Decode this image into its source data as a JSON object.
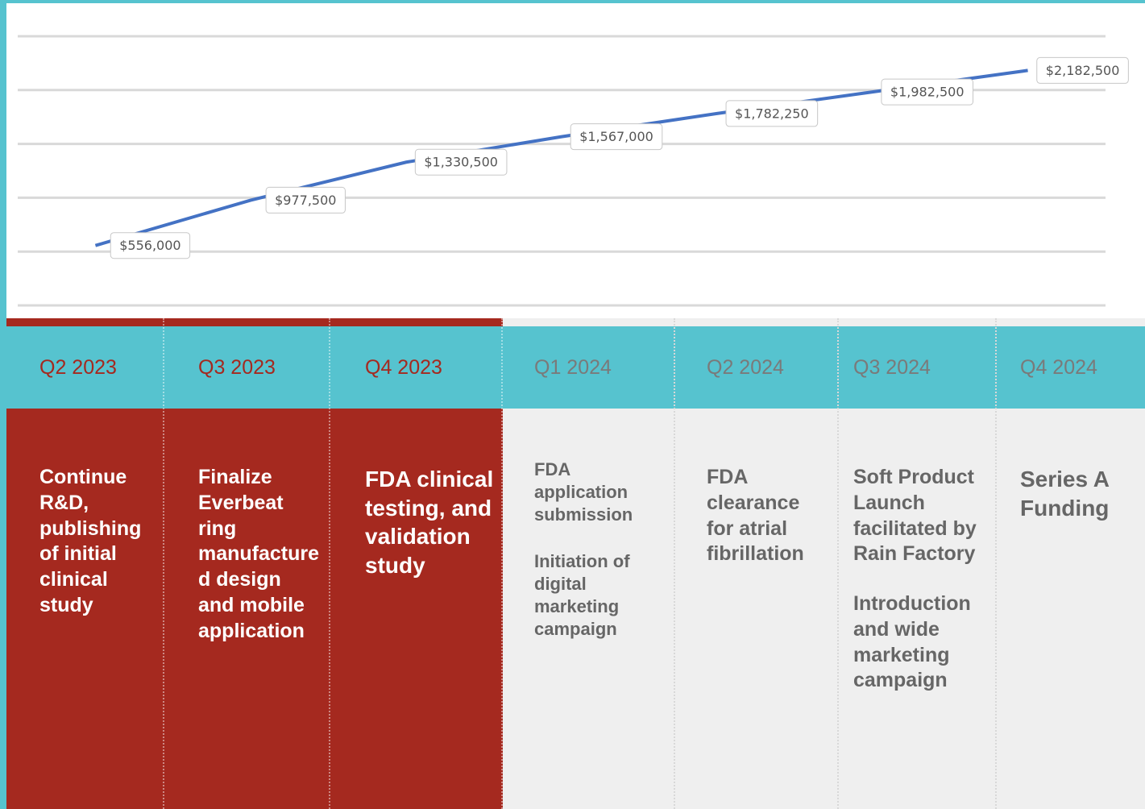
{
  "chart_data": {
    "type": "line",
    "categories": [
      "Q2 2023",
      "Q3 2023",
      "Q4 2023",
      "Q1 2024",
      "Q2 2024",
      "Q3 2024",
      "Q4 2024"
    ],
    "series": [
      {
        "color": "#4472c4",
        "values": [
          556000,
          977500,
          1330500,
          1567000,
          1782250,
          1982500,
          2182500
        ],
        "value_labels": [
          "$556,000",
          "$977,500",
          "$1,330,500",
          "$1,567,000",
          "$1,782,250",
          "$1,982,500",
          "$2,182,500"
        ]
      }
    ],
    "ylim": [
      0,
      2500000
    ],
    "yticks": [
      0,
      500000,
      1000000,
      1500000,
      2000000,
      2500000
    ],
    "grid": true
  },
  "timeline": [
    {
      "done": true,
      "paragraphs": [
        "Continue R&D, publishing of initial clinical study"
      ]
    },
    {
      "done": true,
      "paragraphs": [
        "Finalize Everbeat ring manufactured design and mobile application"
      ]
    },
    {
      "done": true,
      "paragraphs": [
        "FDA clinical testing, and validation study"
      ]
    },
    {
      "done": false,
      "paragraphs": [
        "FDA application submission",
        "Initiation of digital marketing campaign"
      ]
    },
    {
      "done": false,
      "paragraphs": [
        "FDA clearance for atrial fibrillation"
      ]
    },
    {
      "done": false,
      "paragraphs": [
        "Soft Product Launch facilitated by Rain Factory",
        "Introduction and wide marketing campaign"
      ]
    },
    {
      "done": false,
      "paragraphs": [
        "Series A Funding"
      ]
    }
  ]
}
